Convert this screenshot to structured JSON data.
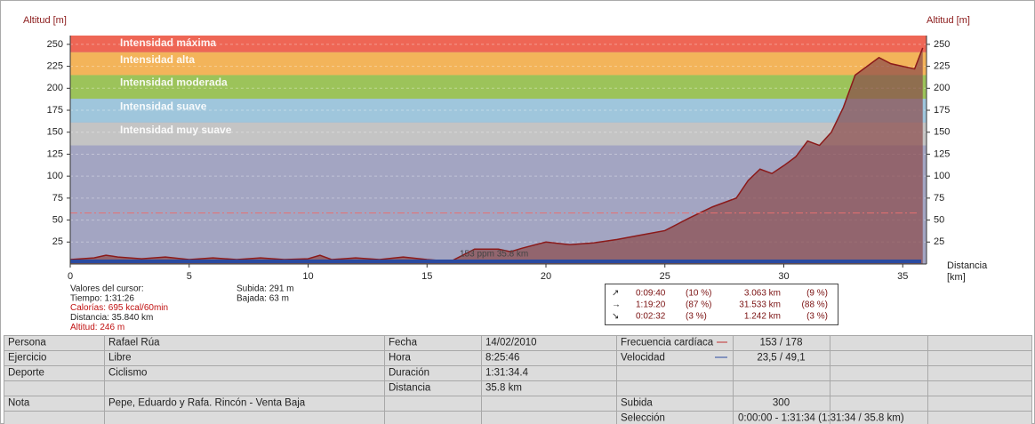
{
  "chart_data": {
    "type": "area",
    "y_label": "Altitud [m]",
    "y2_label": "Altitud [m]",
    "x_label": [
      "Distancia",
      "[km]"
    ],
    "xlim": [
      0,
      36
    ],
    "xticks": [
      0,
      5,
      10,
      15,
      20,
      25,
      30,
      35
    ],
    "ylim": [
      0,
      260
    ],
    "yticks": [
      25,
      50,
      75,
      100,
      125,
      150,
      175,
      200,
      225,
      250
    ],
    "zones": [
      {
        "name": "Intensidad máxima",
        "color": "#ee6655",
        "range": [
          241,
          260
        ]
      },
      {
        "name": "Intensidad alta",
        "color": "#f3b45a",
        "range": [
          215,
          241
        ]
      },
      {
        "name": "Intensidad moderada",
        "color": "#9cc35a",
        "range": [
          188,
          215
        ]
      },
      {
        "name": "Intensidad suave",
        "color": "#9fc6dc",
        "range": [
          161,
          188
        ]
      },
      {
        "name": "Intensidad muy suave",
        "color": "#c4c4c4",
        "range": [
          135,
          161
        ]
      }
    ],
    "background": "#a3a5c2",
    "color": "#8b1a1a",
    "x": [
      0,
      1,
      1.5,
      2,
      3,
      4,
      5,
      6,
      7,
      8,
      9,
      10,
      10.5,
      11,
      12,
      13,
      14,
      15,
      16,
      16.5,
      17,
      18,
      18.5,
      19,
      20,
      21,
      22,
      23,
      24,
      25,
      26,
      27,
      28,
      28.5,
      29,
      29.5,
      30,
      30.5,
      31,
      31.5,
      32,
      32.5,
      33,
      33.5,
      34,
      34.5,
      35,
      35.5,
      35.84
    ],
    "values": [
      5,
      7,
      10,
      8,
      6,
      8,
      5,
      7,
      5,
      7,
      5,
      6,
      10,
      5,
      7,
      5,
      8,
      5,
      3,
      10,
      17,
      17,
      14,
      18,
      25,
      22,
      24,
      28,
      33,
      38,
      52,
      65,
      75,
      95,
      108,
      103,
      112,
      122,
      140,
      135,
      150,
      178,
      215,
      225,
      235,
      228,
      225,
      222,
      246
    ],
    "hr_line": 58,
    "cursor_label": "153 ppm 35.8 km"
  },
  "cursor": {
    "title": "Valores del cursor:",
    "time": "Tiempo: 1:31:26",
    "calories": "Calorías: 695 kcal/60min",
    "distance": "Distancia: 35.840 km",
    "altitude": "Altitud: 246 m",
    "up": "Subida: 291 m",
    "down": "Bajada: 63 m"
  },
  "stats": [
    [
      "0:09:40",
      "(10 %)",
      "3.063 km",
      "(9 %)"
    ],
    [
      "1:19:20",
      "(87 %)",
      "31.533 km",
      "(88 %)"
    ],
    [
      "0:02:32",
      "(3 %)",
      "1.242 km",
      "(3 %)"
    ]
  ],
  "table": {
    "rows": [
      [
        "Persona",
        "Rafael Rúa",
        "Fecha",
        "14/02/2010",
        "Frecuencia cardíaca",
        "153 / 178"
      ],
      [
        "Ejercicio",
        "Libre",
        "Hora",
        "8:25:46",
        "Velocidad",
        "23,5 / 49,1"
      ],
      [
        "Deporte",
        "Ciclismo",
        "Duración",
        "1:31:34.4"
      ],
      [
        "",
        "",
        "Distancia",
        "35.8 km"
      ],
      [
        "Nota",
        "Pepe, Eduardo y Rafa. Rincón - Venta Baja",
        "",
        "",
        "Subida",
        "300"
      ],
      [
        "",
        "",
        "",
        "",
        "Selección",
        "0:00:00 - 1:31:34 (1:31:34 / 35.8 km)"
      ]
    ]
  }
}
